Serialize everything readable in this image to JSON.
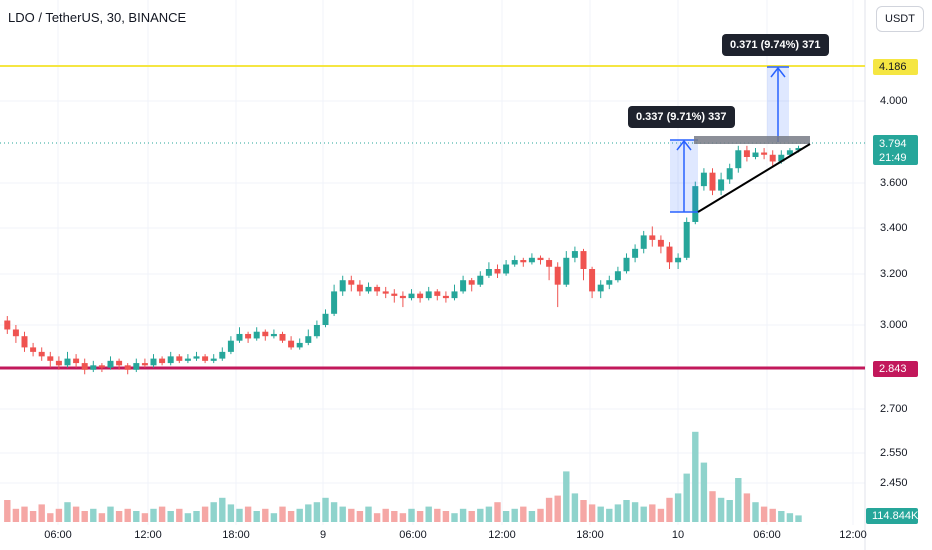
{
  "symbol_title": "LDO / TetherUS, 30, BINANCE",
  "currency_button": "USDT",
  "price_axis": [
    "4.000",
    "3.600",
    "3.400",
    "3.200",
    "3.000",
    "2.700",
    "2.550",
    "2.450"
  ],
  "time_axis": [
    "06:00",
    "12:00",
    "18:00",
    "9",
    "06:00",
    "12:00",
    "18:00",
    "10",
    "06:00",
    "12:00"
  ],
  "price_tags": {
    "yellow_line": "4.186",
    "current_price": "3.794",
    "countdown": "21:49",
    "red_line": "2.843",
    "volume": "114.844K"
  },
  "measurements": {
    "first": "0.337 (9.71%) 337",
    "second": "0.371 (9.74%) 371"
  },
  "colors": {
    "up": "#26a69a",
    "down": "#ef5350",
    "volume_up": "#8fd3cc",
    "volume_down": "#f5a7a5",
    "yellow_line": "#f5e642",
    "red_line": "#c2185b",
    "measure_fill": "#2962ff"
  },
  "chart_data": {
    "type": "candlestick",
    "interval": "30m",
    "x_time_start": "8 06:00",
    "candles": [
      [
        3.02,
        2.98,
        3.04,
        2.96
      ],
      [
        2.98,
        2.95,
        3.0,
        2.92
      ],
      [
        2.95,
        2.9,
        2.97,
        2.88
      ],
      [
        2.9,
        2.88,
        2.92,
        2.86
      ],
      [
        2.88,
        2.86,
        2.9,
        2.84
      ],
      [
        2.86,
        2.84,
        2.88,
        2.81
      ],
      [
        2.84,
        2.82,
        2.86,
        2.8
      ],
      [
        2.82,
        2.85,
        2.88,
        2.81
      ],
      [
        2.85,
        2.83,
        2.87,
        2.81
      ],
      [
        2.83,
        2.8,
        2.85,
        2.78
      ],
      [
        2.8,
        2.82,
        2.84,
        2.79
      ],
      [
        2.82,
        2.81,
        2.83,
        2.79
      ],
      [
        2.81,
        2.84,
        2.86,
        2.8
      ],
      [
        2.84,
        2.82,
        2.85,
        2.8
      ],
      [
        2.82,
        2.8,
        2.83,
        2.78
      ],
      [
        2.8,
        2.83,
        2.85,
        2.79
      ],
      [
        2.83,
        2.82,
        2.85,
        2.81
      ],
      [
        2.82,
        2.85,
        2.87,
        2.81
      ],
      [
        2.85,
        2.83,
        2.86,
        2.82
      ],
      [
        2.83,
        2.86,
        2.88,
        2.82
      ],
      [
        2.86,
        2.84,
        2.87,
        2.83
      ],
      [
        2.84,
        2.85,
        2.87,
        2.83
      ],
      [
        2.85,
        2.86,
        2.88,
        2.84
      ],
      [
        2.86,
        2.84,
        2.87,
        2.83
      ],
      [
        2.84,
        2.85,
        2.87,
        2.83
      ],
      [
        2.85,
        2.88,
        2.9,
        2.84
      ],
      [
        2.88,
        2.93,
        2.95,
        2.87
      ],
      [
        2.93,
        2.96,
        2.99,
        2.92
      ],
      [
        2.96,
        2.94,
        2.97,
        2.92
      ],
      [
        2.94,
        2.97,
        2.99,
        2.93
      ],
      [
        2.97,
        2.95,
        2.98,
        2.93
      ],
      [
        2.95,
        2.96,
        2.98,
        2.94
      ],
      [
        2.96,
        2.93,
        2.97,
        2.92
      ],
      [
        2.93,
        2.9,
        2.95,
        2.89
      ],
      [
        2.9,
        2.92,
        2.94,
        2.89
      ],
      [
        2.92,
        2.95,
        2.98,
        2.91
      ],
      [
        2.95,
        3.0,
        3.02,
        2.94
      ],
      [
        3.0,
        3.05,
        3.07,
        2.99
      ],
      [
        3.05,
        3.15,
        3.18,
        3.04
      ],
      [
        3.15,
        3.2,
        3.22,
        3.13
      ],
      [
        3.2,
        3.18,
        3.22,
        3.15
      ],
      [
        3.18,
        3.15,
        3.2,
        3.13
      ],
      [
        3.15,
        3.17,
        3.19,
        3.14
      ],
      [
        3.17,
        3.15,
        3.18,
        3.13
      ],
      [
        3.15,
        3.14,
        3.17,
        3.12
      ],
      [
        3.14,
        3.13,
        3.16,
        3.1
      ],
      [
        3.13,
        3.12,
        3.15,
        3.08
      ],
      [
        3.12,
        3.14,
        3.16,
        3.11
      ],
      [
        3.14,
        3.12,
        3.15,
        3.1
      ],
      [
        3.12,
        3.15,
        3.17,
        3.11
      ],
      [
        3.15,
        3.13,
        3.16,
        3.11
      ],
      [
        3.13,
        3.12,
        3.15,
        3.1
      ],
      [
        3.12,
        3.15,
        3.18,
        3.11
      ],
      [
        3.15,
        3.2,
        3.22,
        3.14
      ],
      [
        3.2,
        3.18,
        3.21,
        3.15
      ],
      [
        3.18,
        3.22,
        3.24,
        3.17
      ],
      [
        3.22,
        3.25,
        3.28,
        3.21
      ],
      [
        3.25,
        3.23,
        3.27,
        3.21
      ],
      [
        3.23,
        3.27,
        3.29,
        3.22
      ],
      [
        3.27,
        3.29,
        3.31,
        3.26
      ],
      [
        3.29,
        3.28,
        3.3,
        3.26
      ],
      [
        3.28,
        3.3,
        3.32,
        3.27
      ],
      [
        3.3,
        3.29,
        3.31,
        3.27
      ],
      [
        3.29,
        3.26,
        3.3,
        3.2
      ],
      [
        3.26,
        3.18,
        3.28,
        3.08
      ],
      [
        3.18,
        3.3,
        3.33,
        3.17
      ],
      [
        3.3,
        3.33,
        3.35,
        3.28
      ],
      [
        3.33,
        3.25,
        3.34,
        3.2
      ],
      [
        3.25,
        3.15,
        3.26,
        3.12
      ],
      [
        3.15,
        3.18,
        3.2,
        3.12
      ],
      [
        3.18,
        3.2,
        3.22,
        3.16
      ],
      [
        3.2,
        3.24,
        3.26,
        3.19
      ],
      [
        3.24,
        3.3,
        3.32,
        3.23
      ],
      [
        3.3,
        3.34,
        3.36,
        3.28
      ],
      [
        3.34,
        3.4,
        3.42,
        3.32
      ],
      [
        3.4,
        3.38,
        3.44,
        3.35
      ],
      [
        3.38,
        3.35,
        3.4,
        3.32
      ],
      [
        3.35,
        3.28,
        3.37,
        3.25
      ],
      [
        3.28,
        3.3,
        3.32,
        3.25
      ],
      [
        3.3,
        3.46,
        3.48,
        3.29
      ],
      [
        3.46,
        3.62,
        3.64,
        3.45
      ],
      [
        3.62,
        3.68,
        3.7,
        3.6
      ],
      [
        3.68,
        3.6,
        3.7,
        3.58
      ],
      [
        3.6,
        3.65,
        3.68,
        3.58
      ],
      [
        3.65,
        3.7,
        3.72,
        3.63
      ],
      [
        3.7,
        3.78,
        3.8,
        3.68
      ],
      [
        3.78,
        3.75,
        3.8,
        3.73
      ],
      [
        3.75,
        3.77,
        3.79,
        3.74
      ],
      [
        3.77,
        3.76,
        3.79,
        3.74
      ],
      [
        3.76,
        3.73,
        3.78,
        3.71
      ],
      [
        3.73,
        3.76,
        3.78,
        3.72
      ],
      [
        3.76,
        3.78,
        3.79,
        3.75
      ],
      [
        3.78,
        3.79,
        3.8,
        3.77
      ]
    ],
    "volumes": [
      1.0,
      0.6,
      0.7,
      0.5,
      0.8,
      0.4,
      0.6,
      0.9,
      0.7,
      0.5,
      0.6,
      0.4,
      0.7,
      0.5,
      0.6,
      0.5,
      0.4,
      0.6,
      0.7,
      0.5,
      0.6,
      0.4,
      0.5,
      0.7,
      0.9,
      1.1,
      0.8,
      0.6,
      0.7,
      0.5,
      0.6,
      0.4,
      0.7,
      0.5,
      0.6,
      0.8,
      0.9,
      1.1,
      0.9,
      0.7,
      0.6,
      0.5,
      0.7,
      0.4,
      0.6,
      0.5,
      0.4,
      0.6,
      0.5,
      0.7,
      0.6,
      0.5,
      0.4,
      0.6,
      0.5,
      0.6,
      0.7,
      0.9,
      0.5,
      0.6,
      0.7,
      0.5,
      0.6,
      1.1,
      1.2,
      2.3,
      1.3,
      1.0,
      0.8,
      0.7,
      0.6,
      0.8,
      1.0,
      0.9,
      0.7,
      0.8,
      0.6,
      1.1,
      1.3,
      2.2,
      4.1,
      2.7,
      1.4,
      1.1,
      1.0,
      2.0,
      1.3,
      0.9,
      0.7,
      0.6,
      0.5,
      0.4,
      0.3
    ]
  }
}
